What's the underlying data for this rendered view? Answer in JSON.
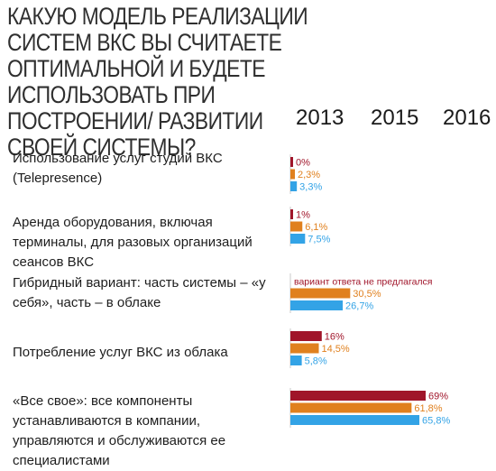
{
  "title": "Какую модель реализации систем ВКС вы считаете оптимальной и будете использовать при построении/ развитии своей системы?",
  "colors": {
    "2013": "#a0152a",
    "2015": "#e0801e",
    "2016": "#33a3e6"
  },
  "chart_data": {
    "type": "bar",
    "orientation": "horizontal",
    "title": "Какую модель реализации систем ВКС вы считаете оптимальной и будете использовать при построении/ развитии своей системы?",
    "xlabel": "",
    "ylabel": "",
    "xlim": [
      0,
      100
    ],
    "legend": [
      "2013",
      "2015",
      "2016"
    ],
    "legend_placement": "top-right",
    "grid": false,
    "categories": [
      "Использование услуг студий ВКС (Telepresence)",
      "Аренда оборудования, включая терминалы, для разовых организаций сеансов ВКС",
      "Гибридный вариант: часть системы – «у себя», часть – в облаке",
      "Потребление услуг ВКС из облака",
      "«Все свое»: все компоненты устанавливаются в компании, управляются и обслуживаются ее специалистами"
    ],
    "series": [
      {
        "name": "2013",
        "values": [
          0,
          1,
          null,
          16,
          69
        ],
        "labels": [
          "0%",
          "1%",
          "вариант ответа не предлагался",
          "16%",
          "69%"
        ]
      },
      {
        "name": "2015",
        "values": [
          2.3,
          6.1,
          30.5,
          14.5,
          61.8
        ],
        "labels": [
          "2,3%",
          "6,1%",
          "30,5%",
          "14,5%",
          "61,8%"
        ]
      },
      {
        "name": "2016",
        "values": [
          3.3,
          7.5,
          26.7,
          5.8,
          65.8
        ],
        "labels": [
          "3,3%",
          "7,5%",
          "26,7%",
          "5,8%",
          "65,8%"
        ]
      }
    ]
  }
}
